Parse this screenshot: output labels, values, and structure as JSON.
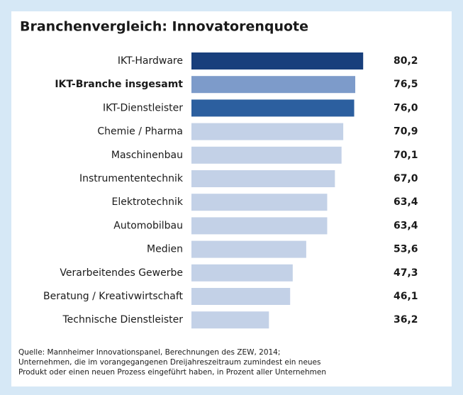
{
  "chart_data": {
    "type": "bar",
    "orientation": "horizontal",
    "title": "Branchenvergleich: Innovatorenquote",
    "categories": [
      "IKT-Hardware",
      "IKT-Branche insgesamt",
      "IKT-Dienstleister",
      "Chemie / Pharma",
      "Maschinenbau",
      "Instrumententechnik",
      "Elektrotechnik",
      "Automobilbau",
      "Medien",
      "Verarbeitendes Gewerbe",
      "Beratung / Kreativwirtschaft",
      "Technische Dienstleister"
    ],
    "values": [
      80.2,
      76.5,
      76.0,
      70.9,
      70.1,
      67.0,
      63.4,
      63.4,
      53.6,
      47.3,
      46.1,
      36.2
    ],
    "value_labels": [
      "80,2",
      "76,5",
      "76,0",
      "70,9",
      "70,1",
      "67,0",
      "63,4",
      "63,4",
      "53,6",
      "47,3",
      "46,1",
      "36,2"
    ],
    "colors": [
      "#183f7c",
      "#7d9bca",
      "#2c5f9f",
      "#c3d1e7",
      "#c3d1e7",
      "#c3d1e7",
      "#c3d1e7",
      "#c3d1e7",
      "#c3d1e7",
      "#c3d1e7",
      "#c3d1e7",
      "#c3d1e7"
    ],
    "highlight": 1,
    "xlim": [
      0,
      100
    ],
    "notes": [
      "Quelle: Mannheimer Innovationspanel, Berechnungen des ZEW, 2014;",
      "Unternehmen, die im vorangegangenen Dreijahreszeitraum zumindest ein neues",
      "Produkt oder einen neuen Prozess eingeführt haben, in Prozent aller Unternehmen"
    ]
  }
}
